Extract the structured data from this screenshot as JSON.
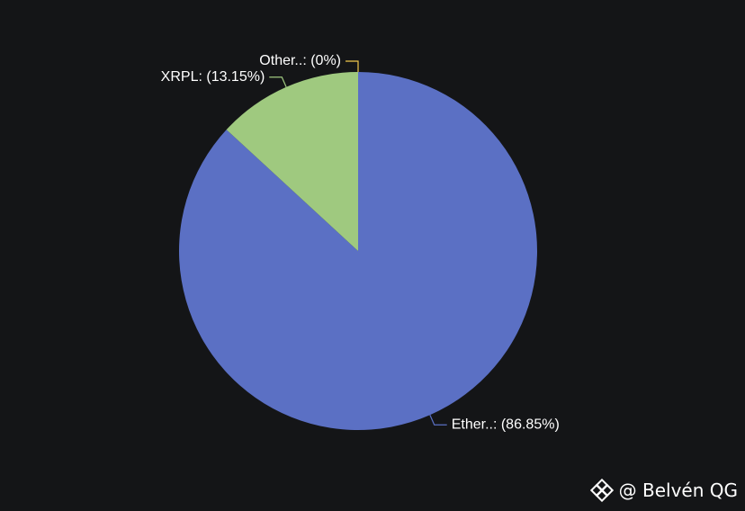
{
  "chart_data": {
    "type": "pie",
    "slices": [
      {
        "label": "Ether..: (86.85%)",
        "value": 86.85,
        "color": "#5b70c4"
      },
      {
        "label": "XRPL: (13.15%)",
        "value": 13.15,
        "color": "#9fc97f"
      },
      {
        "label": "Other..: (0%)",
        "value": 0,
        "color": "#f2c94c"
      }
    ],
    "start_angle_deg": 0,
    "direction": "clockwise",
    "background": "#141517"
  },
  "watermark": {
    "text": "@ Belvén QG",
    "logo_icon": "binance-diamond-icon"
  }
}
